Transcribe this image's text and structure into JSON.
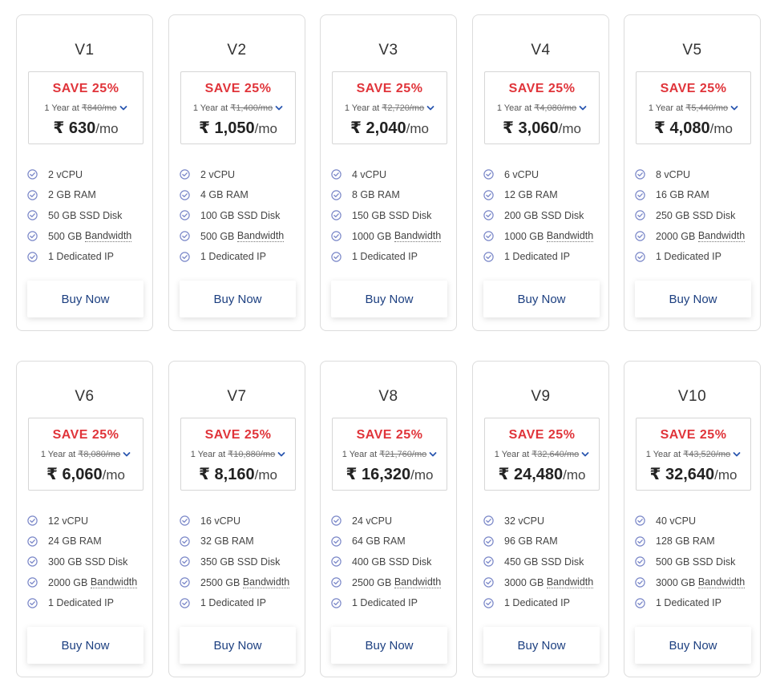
{
  "colors": {
    "save_red": "#e0343a",
    "button_text_blue": "#1c3f80",
    "check_icon": "#7a87c8",
    "chevron_blue": "#2a57b0"
  },
  "plans": [
    {
      "name": "V1",
      "save": "SAVE 25%",
      "term": "1 Year at ",
      "currency": "₹",
      "old_price": "840/mo",
      "price": "630",
      "per": "/mo",
      "features": {
        "cpu": "2 vCPU",
        "ram": "2 GB RAM",
        "disk": "50 GB SSD Disk",
        "bw_size": "500 GB",
        "bw_label": "Bandwidth",
        "ip": "1 Dedicated IP"
      },
      "button": "Buy Now"
    },
    {
      "name": "V2",
      "save": "SAVE 25%",
      "term": "1 Year at ",
      "currency": "₹",
      "old_price": "1,400/mo",
      "price": "1,050",
      "per": "/mo",
      "features": {
        "cpu": "2 vCPU",
        "ram": "4 GB RAM",
        "disk": "100 GB SSD Disk",
        "bw_size": "500 GB",
        "bw_label": "Bandwidth",
        "ip": "1 Dedicated IP"
      },
      "button": "Buy Now"
    },
    {
      "name": "V3",
      "save": "SAVE 25%",
      "term": "1 Year at ",
      "currency": "₹",
      "old_price": "2,720/mo",
      "price": "2,040",
      "per": "/mo",
      "features": {
        "cpu": "4 vCPU",
        "ram": "8 GB RAM",
        "disk": "150 GB SSD Disk",
        "bw_size": "1000 GB",
        "bw_label": "Bandwidth",
        "ip": "1 Dedicated IP"
      },
      "button": "Buy Now"
    },
    {
      "name": "V4",
      "save": "SAVE 25%",
      "term": "1 Year at ",
      "currency": "₹",
      "old_price": "4,080/mo",
      "price": "3,060",
      "per": "/mo",
      "features": {
        "cpu": "6 vCPU",
        "ram": "12 GB RAM",
        "disk": "200 GB SSD Disk",
        "bw_size": "1000 GB",
        "bw_label": "Bandwidth",
        "ip": "1 Dedicated IP"
      },
      "button": "Buy Now"
    },
    {
      "name": "V5",
      "save": "SAVE 25%",
      "term": "1 Year at ",
      "currency": "₹",
      "old_price": "5,440/mo",
      "price": "4,080",
      "per": "/mo",
      "features": {
        "cpu": "8 vCPU",
        "ram": "16 GB RAM",
        "disk": "250 GB SSD Disk",
        "bw_size": "2000 GB",
        "bw_label": "Bandwidth",
        "ip": "1 Dedicated IP"
      },
      "button": "Buy Now"
    },
    {
      "name": "V6",
      "save": "SAVE 25%",
      "term": "1 Year at ",
      "currency": "₹",
      "old_price": "8,080/mo",
      "price": "6,060",
      "per": "/mo",
      "features": {
        "cpu": "12 vCPU",
        "ram": "24 GB RAM",
        "disk": "300 GB SSD Disk",
        "bw_size": "2000 GB",
        "bw_label": "Bandwidth",
        "ip": "1 Dedicated IP"
      },
      "button": "Buy Now"
    },
    {
      "name": "V7",
      "save": "SAVE 25%",
      "term": "1 Year at ",
      "currency": "₹",
      "old_price": "10,880/mo",
      "price": "8,160",
      "per": "/mo",
      "features": {
        "cpu": "16 vCPU",
        "ram": "32 GB RAM",
        "disk": "350 GB SSD Disk",
        "bw_size": "2500 GB",
        "bw_label": "Bandwidth",
        "ip": "1 Dedicated IP"
      },
      "button": "Buy Now"
    },
    {
      "name": "V8",
      "save": "SAVE 25%",
      "term": "1 Year at ",
      "currency": "₹",
      "old_price": "21,760/mo",
      "price": "16,320",
      "per": "/mo",
      "features": {
        "cpu": "24 vCPU",
        "ram": "64 GB RAM",
        "disk": "400 GB SSD Disk",
        "bw_size": "2500 GB",
        "bw_label": "Bandwidth",
        "ip": "1 Dedicated IP"
      },
      "button": "Buy Now"
    },
    {
      "name": "V9",
      "save": "SAVE 25%",
      "term": "1 Year at ",
      "currency": "₹",
      "old_price": "32,640/mo",
      "price": "24,480",
      "per": "/mo",
      "features": {
        "cpu": "32 vCPU",
        "ram": "96 GB RAM",
        "disk": "450 GB SSD Disk",
        "bw_size": "3000 GB",
        "bw_label": "Bandwidth",
        "ip": "1 Dedicated IP"
      },
      "button": "Buy Now"
    },
    {
      "name": "V10",
      "save": "SAVE 25%",
      "term": "1 Year at ",
      "currency": "₹",
      "old_price": "43,520/mo",
      "price": "32,640",
      "per": "/mo",
      "features": {
        "cpu": "40 vCPU",
        "ram": "128 GB RAM",
        "disk": "500 GB SSD Disk",
        "bw_size": "3000 GB",
        "bw_label": "Bandwidth",
        "ip": "1 Dedicated IP"
      },
      "button": "Buy Now"
    }
  ]
}
